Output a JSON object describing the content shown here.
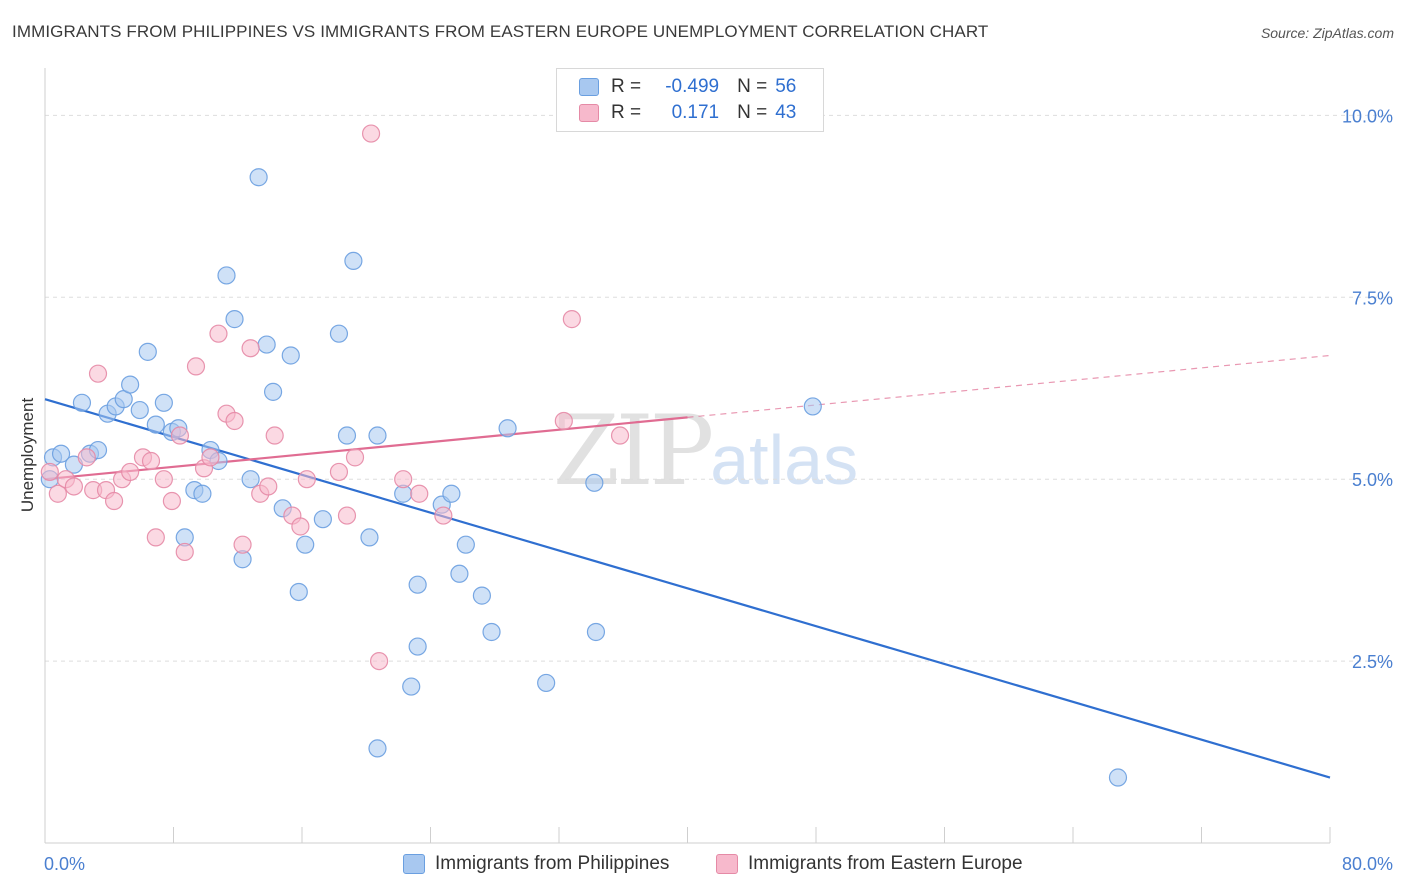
{
  "title": "IMMIGRANTS FROM PHILIPPINES VS IMMIGRANTS FROM EASTERN EUROPE UNEMPLOYMENT CORRELATION CHART",
  "source": "Source: ZipAtlas.com",
  "watermark": {
    "zip": "ZIP",
    "atlas": "atlas"
  },
  "legend": {
    "rows": [
      {
        "r_label": "R =",
        "r_value": "-0.499",
        "n_label": "N =",
        "n_value": "56",
        "color": "#a8c8f0",
        "border": "#6a9fe0"
      },
      {
        "r_label": "R =",
        "r_value": "0.171",
        "n_label": "N =",
        "n_value": "43",
        "color": "#f7b9cc",
        "border": "#e58aa6"
      }
    ]
  },
  "bottom_legend": {
    "items": [
      {
        "label": "Immigrants from Philippines",
        "color": "#a8c8f0",
        "border": "#6a9fe0"
      },
      {
        "label": "Immigrants from Eastern Europe",
        "color": "#f7b9cc",
        "border": "#e58aa6"
      }
    ]
  },
  "chart_data": {
    "type": "scatter",
    "title": "IMMIGRANTS FROM PHILIPPINES VS IMMIGRANTS FROM EASTERN EUROPE UNEMPLOYMENT CORRELATION CHART",
    "xlabel": "",
    "ylabel": "Unemployment",
    "xlim": [
      0,
      80
    ],
    "ylim": [
      0,
      10.5
    ],
    "x_tick_labels": [
      "0.0%",
      "80.0%"
    ],
    "y_ticks": [
      2.5,
      5.0,
      7.5,
      10.0
    ],
    "y_tick_labels": [
      "2.5%",
      "5.0%",
      "7.5%",
      "10.0%"
    ],
    "grid": true,
    "legend_position": "top-center",
    "series": [
      {
        "name": "Immigrants from Philippines",
        "color": "#6a9fe0",
        "fill": "#a8c8f0",
        "trend": {
          "x": [
            0,
            80
          ],
          "y": [
            6.1,
            0.9
          ],
          "color": "#2f6fd0"
        },
        "points": [
          [
            0.5,
            5.3
          ],
          [
            1.0,
            5.35
          ],
          [
            1.8,
            5.2
          ],
          [
            2.3,
            6.05
          ],
          [
            2.8,
            5.35
          ],
          [
            3.3,
            5.4
          ],
          [
            3.9,
            5.9
          ],
          [
            4.4,
            6.0
          ],
          [
            4.9,
            6.1
          ],
          [
            5.3,
            6.3
          ],
          [
            5.9,
            5.95
          ],
          [
            6.4,
            6.75
          ],
          [
            6.9,
            5.75
          ],
          [
            7.4,
            6.05
          ],
          [
            7.9,
            5.65
          ],
          [
            8.3,
            5.7
          ],
          [
            8.7,
            4.2
          ],
          [
            9.3,
            4.85
          ],
          [
            9.8,
            4.8
          ],
          [
            10.3,
            5.4
          ],
          [
            10.8,
            5.25
          ],
          [
            11.3,
            7.8
          ],
          [
            11.8,
            7.2
          ],
          [
            12.3,
            3.9
          ],
          [
            12.8,
            5.0
          ],
          [
            13.3,
            9.15
          ],
          [
            13.8,
            6.85
          ],
          [
            14.2,
            6.2
          ],
          [
            14.8,
            4.6
          ],
          [
            15.3,
            6.7
          ],
          [
            15.8,
            3.45
          ],
          [
            16.2,
            4.1
          ],
          [
            17.3,
            4.45
          ],
          [
            18.3,
            7.0
          ],
          [
            18.8,
            5.6
          ],
          [
            19.2,
            8.0
          ],
          [
            20.2,
            4.2
          ],
          [
            20.7,
            5.6
          ],
          [
            20.7,
            1.3
          ],
          [
            22.3,
            4.8
          ],
          [
            22.8,
            2.15
          ],
          [
            23.2,
            2.7
          ],
          [
            23.2,
            3.55
          ],
          [
            24.7,
            4.65
          ],
          [
            25.3,
            4.8
          ],
          [
            25.8,
            3.7
          ],
          [
            26.2,
            4.1
          ],
          [
            27.2,
            3.4
          ],
          [
            27.8,
            2.9
          ],
          [
            28.8,
            5.7
          ],
          [
            31.2,
            2.2
          ],
          [
            34.2,
            4.95
          ],
          [
            34.3,
            2.9
          ],
          [
            47.8,
            6.0
          ],
          [
            66.8,
            0.9
          ],
          [
            0.3,
            5.0
          ]
        ]
      },
      {
        "name": "Immigrants from Eastern Europe",
        "color": "#e58aa6",
        "fill": "#f7b9cc",
        "trend": {
          "x": [
            0,
            40
          ],
          "y": [
            5.0,
            5.85
          ],
          "color": "#e06c92",
          "dashed_to": [
            80,
            6.7
          ]
        },
        "points": [
          [
            0.3,
            5.1
          ],
          [
            0.8,
            4.8
          ],
          [
            1.3,
            5.0
          ],
          [
            1.8,
            4.9
          ],
          [
            2.6,
            5.3
          ],
          [
            3.0,
            4.85
          ],
          [
            3.3,
            6.45
          ],
          [
            3.8,
            4.85
          ],
          [
            4.3,
            4.7
          ],
          [
            4.8,
            5.0
          ],
          [
            5.3,
            5.1
          ],
          [
            6.1,
            5.3
          ],
          [
            6.6,
            5.25
          ],
          [
            6.9,
            4.2
          ],
          [
            7.4,
            5.0
          ],
          [
            7.9,
            4.7
          ],
          [
            8.4,
            5.6
          ],
          [
            8.7,
            4.0
          ],
          [
            9.4,
            6.55
          ],
          [
            9.9,
            5.15
          ],
          [
            10.3,
            5.3
          ],
          [
            10.8,
            7.0
          ],
          [
            11.3,
            5.9
          ],
          [
            11.8,
            5.8
          ],
          [
            12.3,
            4.1
          ],
          [
            12.8,
            6.8
          ],
          [
            13.4,
            4.8
          ],
          [
            13.9,
            4.9
          ],
          [
            14.3,
            5.6
          ],
          [
            15.4,
            4.5
          ],
          [
            15.9,
            4.35
          ],
          [
            16.3,
            5.0
          ],
          [
            18.3,
            5.1
          ],
          [
            18.8,
            4.5
          ],
          [
            19.3,
            5.3
          ],
          [
            20.3,
            9.75
          ],
          [
            20.8,
            2.5
          ],
          [
            22.3,
            5.0
          ],
          [
            23.3,
            4.8
          ],
          [
            24.8,
            4.5
          ],
          [
            32.3,
            5.8
          ],
          [
            32.8,
            7.2
          ],
          [
            35.8,
            5.6
          ]
        ]
      }
    ]
  }
}
